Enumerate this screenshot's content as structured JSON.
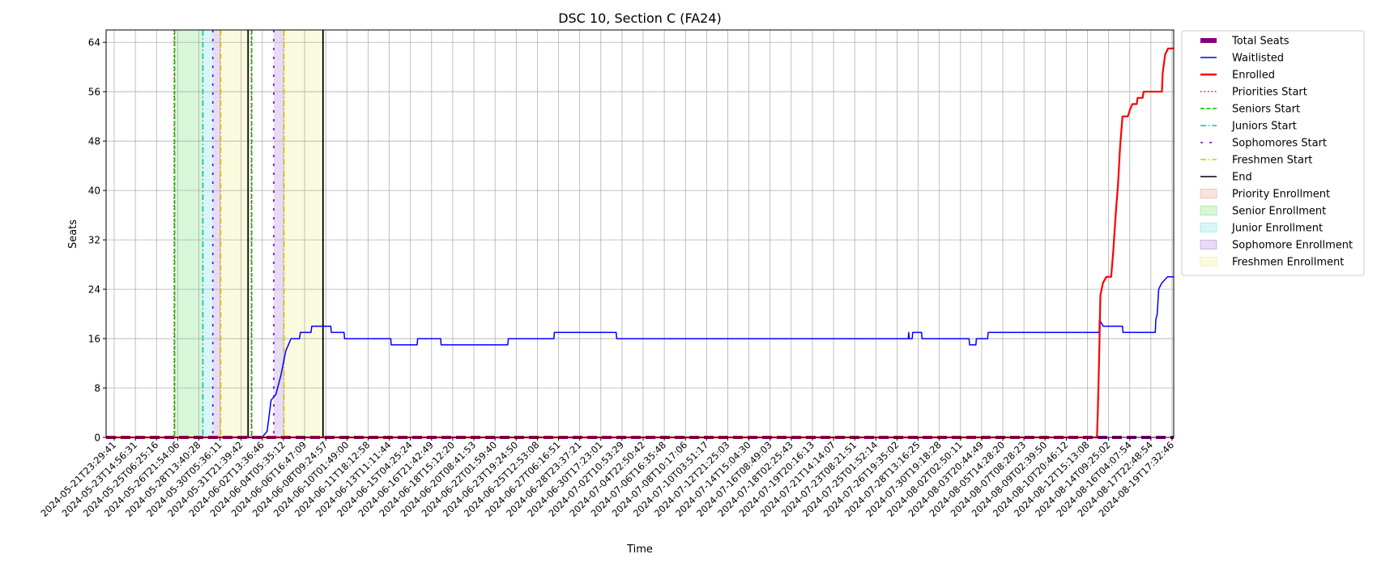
{
  "chart_data": {
    "type": "line",
    "title": "DSC 10, Section C (FA24)",
    "xlabel": "Time",
    "ylabel": "Seats",
    "ylim": [
      0,
      66
    ],
    "yticks": [
      0,
      8,
      16,
      24,
      32,
      40,
      48,
      56,
      64
    ],
    "xrange": [
      "2024-05-21T23:29:41",
      "2024-08-20T17:30:00"
    ],
    "xtick_labels": [
      "2024-05-21T23:29:41",
      "2024-05-23T14:56:31",
      "2024-05-25T06:25:16",
      "2024-05-26T21:54:06",
      "2024-05-28T13:40:28",
      "2024-05-30T05:36:11",
      "2024-05-31T21:39:42",
      "2024-06-02T13:36:46",
      "2024-06-04T05:35:12",
      "2024-06-06T16:47:09",
      "2024-06-08T09:24:57",
      "2024-06-10T01:49:00",
      "2024-06-11T18:12:58",
      "2024-06-13T11:11:44",
      "2024-06-15T04:25:24",
      "2024-06-16T21:42:49",
      "2024-06-18T15:12:20",
      "2024-06-20T08:41:53",
      "2024-06-22T01:59:40",
      "2024-06-23T19:24:50",
      "2024-06-25T12:53:08",
      "2024-06-27T06:16:51",
      "2024-06-28T23:37:21",
      "2024-06-30T17:23:01",
      "2024-07-02T10:53:29",
      "2024-07-04T22:50:42",
      "2024-07-06T16:35:48",
      "2024-07-08T10:17:06",
      "2024-07-10T03:51:17",
      "2024-07-12T21:25:03",
      "2024-07-14T15:04:30",
      "2024-07-16T08:49:03",
      "2024-07-18T02:25:43",
      "2024-07-19T20:16:13",
      "2024-07-21T14:14:07",
      "2024-07-23T08:21:51",
      "2024-07-25T01:52:14",
      "2024-07-26T19:35:02",
      "2024-07-28T13:16:25",
      "2024-07-30T19:18:28",
      "2024-08-02T02:50:11",
      "2024-08-03T20:44:49",
      "2024-08-05T14:28:20",
      "2024-08-07T08:28:23",
      "2024-08-09T02:39:50",
      "2024-08-10T20:46:12",
      "2024-08-12T15:13:08",
      "2024-08-14T09:25:02",
      "2024-08-16T04:07:54",
      "2024-08-17T22:48:54",
      "2024-08-19T17:32:46"
    ],
    "grid": true,
    "legend_position": "outside-right",
    "series": [
      {
        "name": "Total Seats",
        "color": "#800080",
        "style": "dashed-thick",
        "points": [
          [
            "2024-05-21T23:29:41",
            0
          ],
          [
            "2024-08-20T17:30:00",
            0
          ]
        ]
      },
      {
        "name": "Waitlisted",
        "color": "#0000ff",
        "style": "solid",
        "points": [
          [
            "2024-05-21T23:29:41",
            0
          ],
          [
            "2024-06-04T05:35:12",
            0
          ],
          [
            "2024-06-04T16:00:00",
            1
          ],
          [
            "2024-06-05T00:00:00",
            6
          ],
          [
            "2024-06-05T10:00:00",
            7
          ],
          [
            "2024-06-05T20:00:00",
            10
          ],
          [
            "2024-06-06T06:00:00",
            14
          ],
          [
            "2024-06-06T16:47:09",
            16
          ],
          [
            "2024-06-07T10:00:00",
            16
          ],
          [
            "2024-06-07T12:00:00",
            17
          ],
          [
            "2024-06-08T09:24:57",
            17
          ],
          [
            "2024-06-08T11:00:00",
            18
          ],
          [
            "2024-06-10T01:49:00",
            18
          ],
          [
            "2024-06-10T03:00:00",
            17
          ],
          [
            "2024-06-11T05:00:00",
            17
          ],
          [
            "2024-06-11T06:00:00",
            16
          ],
          [
            "2024-06-15T04:25:24",
            16
          ],
          [
            "2024-06-15T05:00:00",
            15
          ],
          [
            "2024-06-17T10:00:00",
            15
          ],
          [
            "2024-06-17T11:00:00",
            16
          ],
          [
            "2024-06-19T10:00:00",
            16
          ],
          [
            "2024-06-19T11:00:00",
            15
          ],
          [
            "2024-06-25T03:00:00",
            15
          ],
          [
            "2024-06-25T04:00:00",
            16
          ],
          [
            "2024-06-29T01:00:00",
            16
          ],
          [
            "2024-06-29T02:00:00",
            17
          ],
          [
            "2024-07-04T08:00:00",
            17
          ],
          [
            "2024-07-04T09:00:00",
            16
          ],
          [
            "2024-07-29T04:00:00",
            16
          ],
          [
            "2024-07-29T05:00:00",
            17
          ],
          [
            "2024-07-29T06:00:00",
            16
          ],
          [
            "2024-07-29T12:00:00",
            16
          ],
          [
            "2024-07-29T13:00:00",
            17
          ],
          [
            "2024-07-30T07:00:00",
            17
          ],
          [
            "2024-07-30T08:00:00",
            16
          ],
          [
            "2024-08-03T08:00:00",
            16
          ],
          [
            "2024-08-03T09:00:00",
            15
          ],
          [
            "2024-08-03T22:00:00",
            15
          ],
          [
            "2024-08-03T23:00:00",
            16
          ],
          [
            "2024-08-04T22:00:00",
            16
          ],
          [
            "2024-08-04T23:00:00",
            17
          ],
          [
            "2024-08-14T09:25:02",
            17
          ],
          [
            "2024-08-14T10:00:00",
            19
          ],
          [
            "2024-08-14T18:00:00",
            18
          ],
          [
            "2024-08-16T09:00:00",
            18
          ],
          [
            "2024-08-16T10:00:00",
            17
          ],
          [
            "2024-08-19T04:00:00",
            17
          ],
          [
            "2024-08-19T05:00:00",
            19
          ],
          [
            "2024-08-19T08:00:00",
            20
          ],
          [
            "2024-08-19T11:00:00",
            24
          ],
          [
            "2024-08-19T17:00:00",
            25
          ],
          [
            "2024-08-20T05:00:00",
            26
          ],
          [
            "2024-08-20T17:30:00",
            26
          ]
        ]
      },
      {
        "name": "Enrolled",
        "color": "#ff0000",
        "style": "solid-thick",
        "points": [
          [
            "2024-05-21T23:29:41",
            0
          ],
          [
            "2024-08-14T05:00:00",
            0
          ],
          [
            "2024-08-14T07:00:00",
            5
          ],
          [
            "2024-08-14T09:25:02",
            13
          ],
          [
            "2024-08-14T12:00:00",
            23
          ],
          [
            "2024-08-14T17:00:00",
            25
          ],
          [
            "2024-08-15T00:00:00",
            26
          ],
          [
            "2024-08-15T10:00:00",
            26
          ],
          [
            "2024-08-15T14:00:00",
            30
          ],
          [
            "2024-08-15T20:00:00",
            37
          ],
          [
            "2024-08-16T00:00:00",
            41
          ],
          [
            "2024-08-16T04:07:54",
            47
          ],
          [
            "2024-08-16T09:00:00",
            52
          ],
          [
            "2024-08-16T20:00:00",
            52
          ],
          [
            "2024-08-17T00:00:00",
            53
          ],
          [
            "2024-08-17T05:00:00",
            54
          ],
          [
            "2024-08-17T14:00:00",
            54
          ],
          [
            "2024-08-17T16:00:00",
            55
          ],
          [
            "2024-08-18T02:00:00",
            55
          ],
          [
            "2024-08-18T04:00:00",
            56
          ],
          [
            "2024-08-19T17:32:46",
            56
          ],
          [
            "2024-08-19T19:00:00",
            59
          ],
          [
            "2024-08-20T00:00:00",
            62
          ],
          [
            "2024-08-20T06:00:00",
            63
          ],
          [
            "2024-08-20T17:30:00",
            63
          ]
        ]
      }
    ],
    "vlines": [
      {
        "name": "Priorities Start",
        "color": "#ff0000",
        "style": "dotted",
        "at": [
          "2024-05-27T18:20:00",
          "2024-06-03T07:40:00"
        ]
      },
      {
        "name": "Seniors Start",
        "color": "#00c000",
        "style": "dashed",
        "at": [
          "2024-05-27T19:10:00",
          "2024-06-03T08:30:00"
        ]
      },
      {
        "name": "Juniors Start",
        "color": "#00bfbf",
        "style": "dashdot",
        "at": [
          "2024-05-30T04:50:00"
        ]
      },
      {
        "name": "Sophomores Start",
        "color": "#6a00d0",
        "style": "loosedash",
        "at": [
          "2024-05-31T01:10:00",
          "2024-06-05T05:30:00"
        ]
      },
      {
        "name": "Freshmen Start",
        "color": "#e0c000",
        "style": "dashdot",
        "at": [
          "2024-05-31T17:20:00",
          "2024-06-06T02:30:00"
        ]
      },
      {
        "name": "End",
        "color": "#000000",
        "style": "solid",
        "at": [
          "2024-06-03T01:10:00",
          "2024-06-09T10:00:00"
        ]
      }
    ],
    "spans": [
      {
        "name": "Priority Enrollment",
        "color": "#e8734a",
        "ranges": []
      },
      {
        "name": "Senior Enrollment",
        "color": "#3cd23c",
        "ranges": [
          [
            "2024-05-27T19:10:00",
            "2024-05-30T04:50:00"
          ]
        ]
      },
      {
        "name": "Junior Enrollment",
        "color": "#3cd2d2",
        "ranges": [
          [
            "2024-05-30T04:50:00",
            "2024-05-31T01:10:00"
          ]
        ]
      },
      {
        "name": "Sophomore Enrollment",
        "color": "#8a4ad2",
        "ranges": [
          [
            "2024-05-31T01:10:00",
            "2024-05-31T17:20:00"
          ],
          [
            "2024-06-05T05:30:00",
            "2024-06-06T02:30:00"
          ]
        ]
      },
      {
        "name": "Freshmen Enrollment",
        "color": "#e6e65a",
        "ranges": [
          [
            "2024-05-31T17:20:00",
            "2024-06-03T01:10:00"
          ],
          [
            "2024-06-06T02:30:00",
            "2024-06-09T10:00:00"
          ]
        ]
      }
    ]
  }
}
